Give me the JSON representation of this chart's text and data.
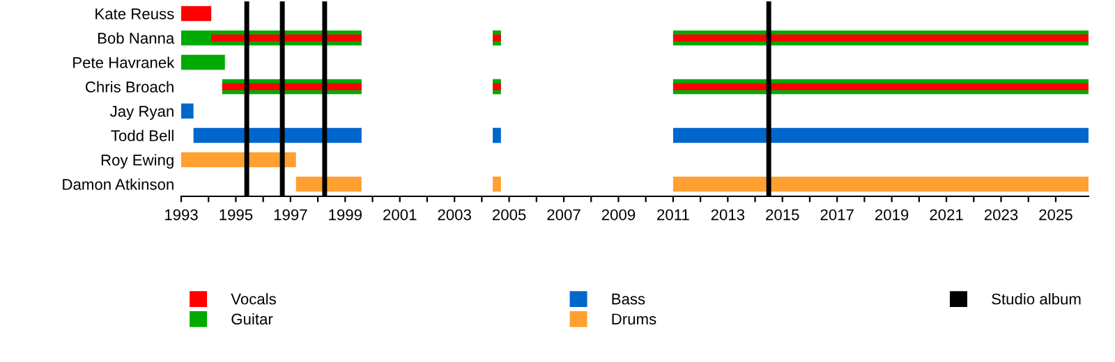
{
  "chart_data": {
    "type": "bar",
    "orientation": "horizontal",
    "categories": [
      "Kate Reuss",
      "Bob Nanna",
      "Pete Havranek",
      "Chris Broach",
      "Jay Ryan",
      "Todd Bell",
      "Roy Ewing",
      "Damon Atkinson"
    ],
    "series": [
      {
        "name": "Vocals",
        "color": "#ff0000",
        "base": [
          1993,
          1994.1,
          null,
          1994.5,
          null,
          null,
          null,
          null
        ],
        "values": [
          1.1,
          5.5,
          null,
          5.1,
          null,
          null,
          null,
          null
        ]
      },
      {
        "color": "#ff0000",
        "base": [
          null,
          2004.4,
          null,
          2004.4,
          null,
          null,
          null,
          null
        ],
        "values": [
          null,
          0.3,
          null,
          0.3,
          null,
          null,
          null,
          null
        ]
      },
      {
        "color": "#ff0000",
        "base": [
          null,
          2011,
          null,
          2011,
          null,
          null,
          null,
          null
        ],
        "values": [
          null,
          15.2,
          null,
          15.2,
          null,
          null,
          null,
          null
        ]
      },
      {
        "name": "Guitar",
        "color": "#00aa00",
        "base": [
          null,
          1993,
          1993,
          1994.5,
          null,
          null,
          null,
          null
        ],
        "values": [
          null,
          6.6,
          1.6,
          5.1,
          null,
          null,
          null,
          null
        ]
      },
      {
        "color": "#00aa00",
        "base": [
          null,
          2004.4,
          null,
          2004.4,
          null,
          null,
          null,
          null
        ],
        "values": [
          null,
          0.3,
          null,
          0.3,
          null,
          null,
          null,
          null
        ]
      },
      {
        "color": "#00aa00",
        "base": [
          null,
          2011,
          null,
          2011,
          null,
          null,
          null,
          null
        ],
        "values": [
          null,
          15.2,
          null,
          15.2,
          null,
          null,
          null,
          null
        ]
      },
      {
        "name": "Bass",
        "color": "#0066cc",
        "base": [
          null,
          null,
          null,
          null,
          1993,
          1993.45,
          null,
          null
        ],
        "values": [
          null,
          null,
          null,
          null,
          0.45,
          6.15,
          null,
          null
        ]
      },
      {
        "color": "#0066cc",
        "base": [
          null,
          null,
          null,
          null,
          null,
          2004.4,
          null,
          null
        ],
        "values": [
          null,
          null,
          null,
          null,
          null,
          0.3,
          null,
          null
        ]
      },
      {
        "color": "#0066cc",
        "base": [
          null,
          null,
          null,
          null,
          null,
          2011,
          null,
          null
        ],
        "values": [
          null,
          null,
          null,
          null,
          null,
          15.2,
          null,
          null
        ]
      },
      {
        "name": "Drums",
        "color": "#ffa030",
        "base": [
          null,
          null,
          null,
          null,
          null,
          null,
          1993,
          1997.2
        ],
        "values": [
          null,
          null,
          null,
          null,
          null,
          null,
          4.2,
          2.4
        ]
      },
      {
        "color": "#ffa030",
        "base": [
          null,
          null,
          null,
          null,
          null,
          null,
          null,
          2004.4
        ],
        "values": [
          null,
          null,
          null,
          null,
          null,
          null,
          null,
          0.3
        ]
      },
      {
        "color": "#ffa030",
        "base": [
          null,
          null,
          null,
          null,
          null,
          null,
          null,
          2011
        ],
        "values": [
          null,
          null,
          null,
          null,
          null,
          null,
          null,
          15.2
        ]
      }
    ],
    "ref_lines": [
      {
        "axis": "x",
        "value": 1995.4,
        "label": "Studio album",
        "color": "#000000"
      },
      {
        "axis": "x",
        "value": 1996.7,
        "color": "#000000"
      },
      {
        "axis": "x",
        "value": 1998.25,
        "color": "#000000"
      },
      {
        "axis": "x",
        "value": 2014.5,
        "color": "#000000"
      }
    ],
    "xlim": [
      1993,
      2026.2
    ],
    "xticks": [
      1993,
      {
        "value": 1994,
        "label": null
      },
      1995,
      {
        "value": 1996,
        "label": null
      },
      1997,
      {
        "value": 1998,
        "label": null
      },
      1999,
      {
        "value": 2000,
        "label": null
      },
      2001,
      {
        "value": 2002,
        "label": null
      },
      2003,
      {
        "value": 2004,
        "label": null
      },
      2005,
      {
        "value": 2006,
        "label": null
      },
      2007,
      {
        "value": 2008,
        "label": null
      },
      2009,
      {
        "value": 2010,
        "label": null
      },
      2011,
      {
        "value": 2012,
        "label": null
      },
      2013,
      {
        "value": 2014,
        "label": null
      },
      2015,
      {
        "value": 2016,
        "label": null
      },
      2017,
      {
        "value": 2018,
        "label": null
      },
      2019,
      {
        "value": 2020,
        "label": null
      },
      2021,
      {
        "value": 2022,
        "label": null
      },
      2023,
      {
        "value": 2024,
        "label": null
      },
      2025
    ],
    "grid": false,
    "legend": "bottom"
  }
}
